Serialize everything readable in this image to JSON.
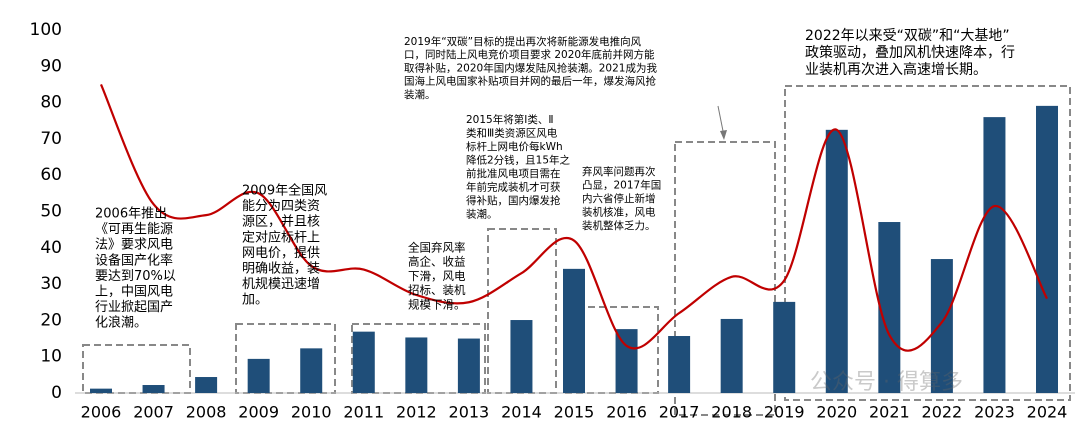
{
  "chart_data": {
    "type": "bar_line",
    "categories": [
      "2006",
      "2007",
      "2008",
      "2009",
      "2010",
      "2011",
      "2012",
      "2013",
      "2014",
      "2015",
      "2016",
      "2017",
      "2018",
      "2019",
      "2020",
      "2021",
      "2022",
      "2023",
      "2024"
    ],
    "series": [
      {
        "type": "bar",
        "color": "#1f4e79",
        "values": [
          1.2,
          2.2,
          4.4,
          9.4,
          12.3,
          16.9,
          15.3,
          15.0,
          20.1,
          34.2,
          17.6,
          15.7,
          20.4,
          25.1,
          72.5,
          47.1,
          36.9,
          76.0,
          79.1
        ]
      },
      {
        "type": "line",
        "color": "#c00000",
        "values": [
          85,
          52,
          49,
          55,
          35,
          34,
          27,
          25,
          33,
          42,
          13,
          22,
          32,
          31,
          72.5,
          16,
          19.5,
          51.5,
          26
        ]
      }
    ],
    "ylim": [
      0,
      100
    ],
    "yticks": [
      0,
      10,
      20,
      30,
      40,
      50,
      60,
      70,
      80,
      90,
      100
    ],
    "grid": false,
    "annotations": [
      [
        "2006年推出",
        "《可再生能源",
        "法》要求风电",
        "设备国产化率",
        "要达到70%以",
        "上，中国风电",
        "行业掀起国产",
        "化浪潮。"
      ],
      [
        "2009年全国风",
        "能分为四类资",
        "源区，并且核",
        "定对应标杆上",
        "网电价，提供",
        "明确收益，装",
        "机规模迅速增",
        "加。"
      ],
      [
        "全国弃风率",
        "高企、收益",
        "下滑，风电",
        "招标、装机",
        "规模下滑。"
      ],
      [
        "2015年将第Ⅰ类、Ⅱ",
        "类和Ⅲ类资源区风电",
        "标杆上网电价每kWh",
        "降低2分钱，且15年之",
        "前批准风电项目需在",
        "年前完成装机才可获",
        "得补贴，国内爆发抢",
        "装潮。"
      ],
      [
        "弃风率问题再次",
        "凸显，2017年国",
        "内六省停止新增",
        "装机核准，风电",
        "装机整体乏力。"
      ],
      [
        "2019年“双碳”目标的提出再次将新能源发电推向风",
        "口，同时陆上风电竞价项目要求 2020年底前并网方能",
        "取得补贴，2020年国内爆发陆风抢装潮。2021成为我",
        "国海上风电国家补贴项目并网的最后一年，爆发海风抢",
        "装潮。"
      ],
      [
        "2022年以来受“双碳”和“大基地”",
        "政策驱动，叠加风机快速降本，行",
        "业装机再次进入高速增长期。"
      ]
    ],
    "watermark": "公众号 · 得算多"
  }
}
